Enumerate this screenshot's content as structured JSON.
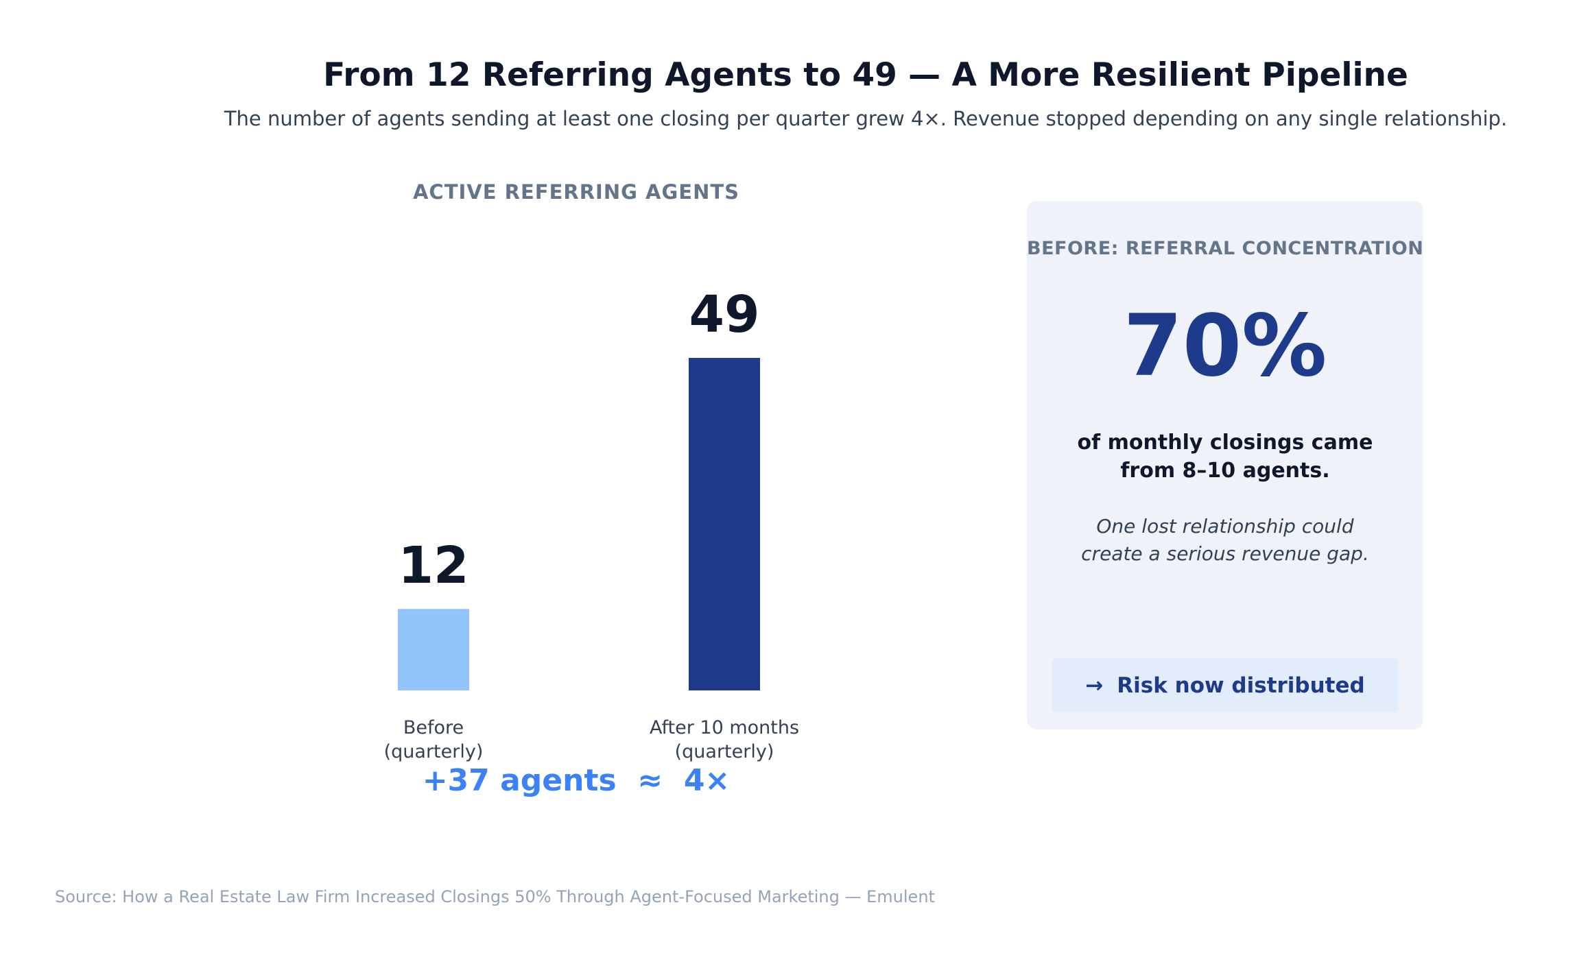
{
  "title": "From 12 Referring Agents to 49 — A More Resilient Pipeline",
  "subtitle": "The number of agents sending at least one closing per quarter grew 4×. Revenue stopped depending on any single relationship.",
  "chart_data": {
    "type": "bar",
    "title": "ACTIVE REFERRING AGENTS",
    "categories": [
      "Before\n(quarterly)",
      "After 10 months\n(quarterly)"
    ],
    "values": [
      12,
      49
    ],
    "colors": [
      "#93c5fd",
      "#1e3a8a"
    ],
    "ylim": [
      0,
      49
    ],
    "grid": false
  },
  "summary": "+37 agents  ≈  4×",
  "card": {
    "label": "BEFORE: REFERRAL CONCENTRATION",
    "stat": "70%",
    "description": "of monthly closings came from 8–10 agents.",
    "note": "One lost relationship could create a serious revenue gap.",
    "risk_arrow": "→",
    "risk_label": "Risk now distributed"
  },
  "source": "Source: How a Real Estate Law Firm Increased Closings 50% Through Agent-Focused Marketing — Emulent",
  "colors": {
    "accent": "#3b82f6",
    "dark_blue": "#1e3a8a",
    "light_blue": "#93c5fd",
    "card_bg": "#eff3f9"
  }
}
